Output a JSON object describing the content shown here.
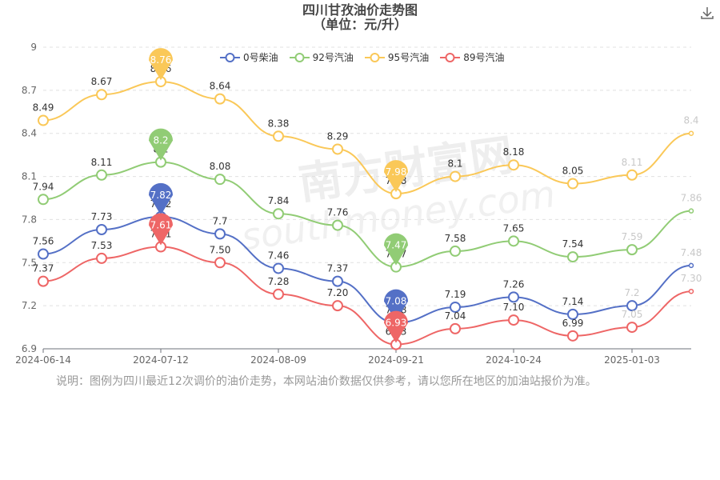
{
  "chart_title": "四川甘孜油价走势图",
  "chart_subtitle": "（单位：元/升）",
  "download_icon": "download-icon",
  "watermark": "南方财富网 southmoney.com",
  "note": "说明：图例为四川最近12次调价的油价走势，本网站油价数据仅供参考，请以您所在地区的加油站报价为准。",
  "chart_data": {
    "type": "line",
    "title": "四川甘孜油价走势图",
    "subtitle": "（单位：元/升）",
    "x_ticks": [
      "2024-06-14",
      "2024-07-12",
      "2024-08-09",
      "2024-09-21",
      "2024-10-24",
      "2025-01-03"
    ],
    "y_ticks": [
      "6.9",
      "7.2",
      "7.5",
      "7.8",
      "8.1",
      "8.4",
      "8.7",
      "9"
    ],
    "ylim": [
      6.9,
      9
    ],
    "grid": "horizontal dashed",
    "legend_position": "top-center",
    "series": [
      {
        "name": "0号柴油",
        "color": "#5470c6",
        "values": [
          7.56,
          7.73,
          7.82,
          7.7,
          7.46,
          7.37,
          7.08,
          7.19,
          7.26,
          7.14,
          7.2,
          7.48
        ],
        "labels": [
          "7.56",
          "7.73",
          "7.82",
          "7.7",
          "7.46",
          "7.37",
          "7.08",
          "7.19",
          "7.26",
          "7.14",
          "7.2",
          "7.48"
        ]
      },
      {
        "name": "92号汽油",
        "color": "#91cc75",
        "values": [
          7.94,
          8.11,
          8.2,
          8.08,
          7.84,
          7.76,
          7.47,
          7.58,
          7.65,
          7.54,
          7.59,
          7.86
        ],
        "labels": [
          "7.94",
          "8.11",
          "8.2",
          "8.08",
          "7.84",
          "7.76",
          "7.47",
          "7.58",
          "7.65",
          "7.54",
          "7.59",
          "7.86"
        ]
      },
      {
        "name": "95号汽油",
        "color": "#fac858",
        "values": [
          8.49,
          8.67,
          8.76,
          8.64,
          8.38,
          8.29,
          7.98,
          8.1,
          8.18,
          8.05,
          8.11,
          8.4
        ],
        "labels": [
          "8.49",
          "8.67",
          "8.76",
          "8.64",
          "8.38",
          "8.29",
          "7.98",
          "8.1",
          "8.18",
          "8.05",
          "8.11",
          "8.4"
        ]
      },
      {
        "name": "89号汽油",
        "color": "#ee6666",
        "values": [
          7.37,
          7.53,
          7.61,
          7.5,
          7.28,
          7.2,
          6.93,
          7.04,
          7.1,
          6.99,
          7.05,
          7.3
        ],
        "labels": [
          "7.37",
          "7.53",
          "7.61",
          "7.50",
          "7.28",
          "7.20",
          "6.93",
          "7.04",
          "7.10",
          "6.99",
          "7.05",
          "7.30"
        ]
      }
    ],
    "markers": [
      {
        "series": 2,
        "index": 2,
        "label": "8.76"
      },
      {
        "series": 2,
        "index": 6,
        "label": "7.98"
      },
      {
        "series": 1,
        "index": 2,
        "label": "8.2"
      },
      {
        "series": 1,
        "index": 6,
        "label": "7.47"
      },
      {
        "series": 0,
        "index": 2,
        "label": "7.82"
      },
      {
        "series": 0,
        "index": 6,
        "label": "7.08"
      },
      {
        "series": 3,
        "index": 2,
        "label": "7.61"
      },
      {
        "series": 3,
        "index": 6,
        "label": "6.93"
      }
    ]
  }
}
